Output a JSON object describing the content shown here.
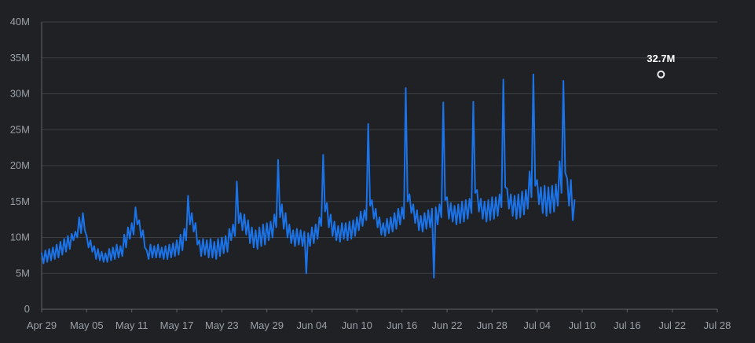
{
  "chart_data": {
    "type": "line",
    "title": "",
    "xlabel": "",
    "ylabel": "",
    "ylim": [
      0,
      40
    ],
    "y_unit_suffix": "M",
    "grid": true,
    "colors": {
      "background": "#202124",
      "series": "#1a73e8",
      "grid": "#3c4043",
      "tick_label": "#9aa0a6",
      "marker_stroke": "#e8eaed",
      "annotation": "#ffffff"
    },
    "y_ticks": [
      {
        "value": 0,
        "label": "0"
      },
      {
        "value": 5,
        "label": "5M"
      },
      {
        "value": 10,
        "label": "10M"
      },
      {
        "value": 15,
        "label": "15M"
      },
      {
        "value": 20,
        "label": "20M"
      },
      {
        "value": 25,
        "label": "25M"
      },
      {
        "value": 30,
        "label": "30M"
      },
      {
        "value": 35,
        "label": "35M"
      },
      {
        "value": 40,
        "label": "40M"
      }
    ],
    "x_ticks": [
      {
        "date": "2024-04-29",
        "label": "Apr 29"
      },
      {
        "date": "2024-05-05",
        "label": "May 05"
      },
      {
        "date": "2024-05-11",
        "label": "May 11"
      },
      {
        "date": "2024-05-17",
        "label": "May 17"
      },
      {
        "date": "2024-05-23",
        "label": "May 23"
      },
      {
        "date": "2024-05-29",
        "label": "May 29"
      },
      {
        "date": "2024-06-04",
        "label": "Jun 04"
      },
      {
        "date": "2024-06-10",
        "label": "Jun 10"
      },
      {
        "date": "2024-06-16",
        "label": "Jun 16"
      },
      {
        "date": "2024-06-22",
        "label": "Jun 22"
      },
      {
        "date": "2024-06-28",
        "label": "Jun 28"
      },
      {
        "date": "2024-07-04",
        "label": "Jul 04"
      },
      {
        "date": "2024-07-10",
        "label": "Jul 10"
      },
      {
        "date": "2024-07-16",
        "label": "Jul 16"
      },
      {
        "date": "2024-07-22",
        "label": "Jul 22"
      },
      {
        "date": "2024-07-28",
        "label": "Jul 28"
      }
    ],
    "series": [
      {
        "values_per_day": 4,
        "start_date": "2024-04-29",
        "values": [
          7.8,
          6.4,
          8.2,
          6.6,
          8.4,
          6.8,
          8.6,
          7.0,
          9.0,
          7.2,
          9.4,
          7.6,
          9.8,
          8.0,
          10.2,
          8.4,
          10.5,
          9.6,
          10.8,
          10.0,
          12.8,
          10.6,
          13.4,
          11.0,
          10.2,
          8.6,
          9.6,
          8.0,
          8.8,
          7.0,
          8.4,
          6.8,
          8.0,
          6.6,
          7.8,
          6.6,
          8.4,
          6.8,
          8.6,
          7.0,
          9.0,
          7.2,
          8.8,
          7.4,
          10.4,
          8.6,
          11.4,
          9.8,
          12.0,
          10.4,
          14.2,
          11.8,
          12.4,
          10.0,
          11.0,
          8.6,
          8.2,
          7.0,
          9.0,
          7.2,
          8.8,
          7.2,
          9.0,
          7.2,
          8.6,
          7.0,
          8.8,
          7.0,
          9.0,
          7.2,
          9.2,
          7.4,
          9.6,
          7.6,
          10.4,
          8.2,
          11.2,
          9.6,
          15.8,
          11.8,
          13.4,
          10.8,
          12.0,
          9.0,
          9.6,
          7.4,
          9.8,
          7.6,
          9.6,
          7.2,
          9.8,
          7.2,
          9.4,
          7.0,
          9.8,
          7.4,
          10.0,
          7.8,
          10.2,
          8.0,
          11.2,
          9.6,
          11.8,
          10.2,
          17.8,
          12.0,
          13.4,
          11.0,
          13.2,
          10.4,
          12.4,
          9.2,
          11.4,
          8.6,
          11.0,
          8.4,
          11.4,
          8.8,
          11.8,
          9.0,
          12.0,
          9.6,
          12.2,
          10.0,
          13.2,
          11.4,
          20.8,
          12.8,
          14.6,
          11.2,
          13.4,
          10.0,
          11.8,
          9.2,
          11.0,
          8.8,
          11.2,
          9.0,
          11.0,
          8.8,
          10.8,
          5.0,
          10.6,
          8.8,
          11.4,
          9.2,
          11.8,
          9.8,
          12.8,
          11.6,
          21.5,
          13.6,
          14.8,
          11.4,
          13.2,
          10.2,
          12.2,
          9.6,
          11.6,
          9.4,
          12.0,
          9.8,
          12.0,
          9.6,
          12.2,
          9.8,
          12.4,
          10.2,
          12.8,
          11.0,
          13.6,
          11.6,
          13.8,
          12.4,
          25.8,
          14.4,
          15.2,
          12.6,
          14.0,
          11.4,
          12.8,
          10.4,
          12.0,
          10.2,
          12.6,
          10.6,
          12.8,
          10.8,
          13.4,
          11.2,
          14.0,
          11.8,
          14.2,
          12.6,
          30.8,
          15.0,
          16.0,
          13.4,
          14.6,
          12.0,
          13.8,
          11.0,
          13.0,
          10.8,
          13.4,
          11.2,
          13.8,
          11.4,
          14.0,
          4.4,
          14.2,
          11.8,
          14.6,
          12.8,
          28.8,
          15.2,
          15.6,
          12.6,
          14.8,
          12.2,
          14.4,
          11.8,
          14.6,
          12.0,
          15.0,
          12.2,
          15.2,
          12.6,
          15.4,
          13.4,
          28.9,
          16.2,
          16.6,
          13.6,
          15.4,
          12.6,
          15.0,
          12.2,
          15.2,
          12.4,
          15.6,
          12.6,
          15.6,
          13.0,
          16.0,
          14.2,
          32.0,
          17.0,
          16.8,
          14.0,
          16.0,
          13.0,
          15.8,
          12.6,
          16.0,
          12.8,
          16.4,
          13.2,
          16.6,
          14.0,
          19.2,
          15.6,
          32.7,
          17.2,
          18.0,
          14.6,
          17.0,
          13.4,
          17.2,
          13.0,
          17.0,
          13.4,
          17.2,
          13.6,
          17.4,
          14.4,
          20.6,
          16.2,
          31.8,
          19.0,
          18.2,
          14.4,
          18.0,
          12.4,
          15.2
        ]
      }
    ],
    "annotation": {
      "value": 32.7,
      "index": 330,
      "label": "32.7M"
    }
  }
}
